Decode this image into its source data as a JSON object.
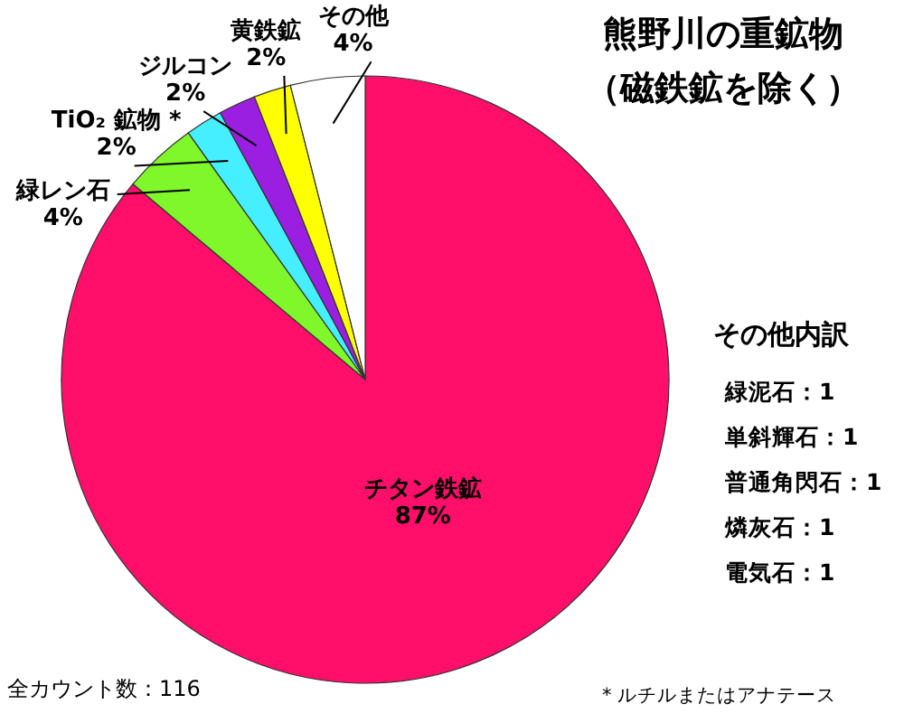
{
  "chart_data": {
    "type": "pie",
    "title": "熊野川の重鉱物",
    "subtitle": "（磁鉄鉱を除く）",
    "categories": [
      "チタン鉄鉱",
      "緑レン石",
      "TiO₂ 鉱物 *",
      "ジルコン",
      "黄鉄鉱",
      "その他"
    ],
    "values": [
      87,
      4,
      2,
      2,
      2,
      4
    ],
    "value_labels": [
      "87%",
      "4%",
      "2%",
      "2%",
      "2%",
      "4%"
    ],
    "colors": [
      "#ff0f69",
      "#80f72a",
      "#45efff",
      "#9b1fe0",
      "#ffff00",
      "#ffffff"
    ],
    "annotations": [
      "その他内訳",
      "緑泥石：1",
      "単斜輝石：1",
      "普通角閃石：1",
      "燐灰石：1",
      "電気石：1",
      "全カウント数：116",
      "* ルチルまたはアナテース"
    ]
  }
}
